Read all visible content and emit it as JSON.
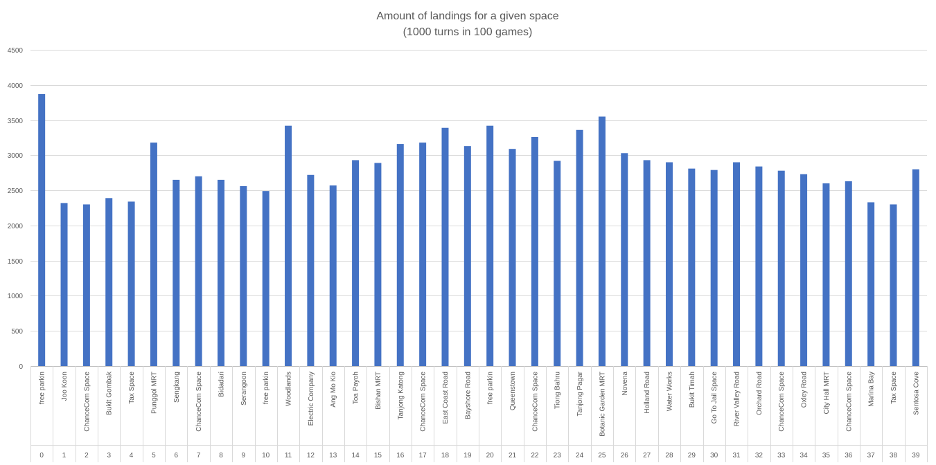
{
  "chart_data": {
    "type": "bar",
    "title": "Amount of landings for a given space",
    "subtitle": "(1000 turns in 100 games)",
    "xlabel": "",
    "ylabel": "",
    "ylim": [
      0,
      4500
    ],
    "yticks": [
      0,
      500,
      1000,
      1500,
      2000,
      2500,
      3000,
      3500,
      4000,
      4500
    ],
    "grid": true,
    "legend": "none",
    "bar_color": "#4472C4",
    "categories": [
      "free parkin",
      "Joo Koon",
      "ChanceCom Space",
      "Bukit Gombak",
      "Tax Space",
      "Punggol MRT",
      "Sengkang",
      "ChanceCom Space",
      "Bidadari",
      "Serangoon",
      "free parkin",
      "Woodlands",
      "Electric Company",
      "Ang Mo Kio",
      "Toa Payoh",
      "Bishan MRT",
      "Tanjong Katong",
      "ChanceCom Space",
      "East Coast Road",
      "Bayshore Road",
      "free parkin",
      "Queenstown",
      "ChanceCom Space",
      "Tiong Bahru",
      "Tanjong Pagar",
      "Botanic Garden MRT",
      "Novena",
      "Holland Road",
      "Water Works",
      "Bukit Timah",
      "Go To Jail Space",
      "River Valley Road",
      "Orchard Road",
      "ChanceCom Space",
      "Oxley Road",
      "City Hall MRT",
      "ChanceCom Space",
      "Marina Bay",
      "Tax Space",
      "Sentosa Cove"
    ],
    "indices": [
      "0",
      "1",
      "2",
      "3",
      "4",
      "5",
      "6",
      "7",
      "8",
      "9",
      "10",
      "11",
      "12",
      "13",
      "14",
      "15",
      "16",
      "17",
      "18",
      "19",
      "20",
      "21",
      "22",
      "23",
      "24",
      "25",
      "26",
      "27",
      "28",
      "29",
      "30",
      "31",
      "32",
      "33",
      "34",
      "35",
      "36",
      "37",
      "38",
      "39"
    ],
    "values": [
      3870,
      2320,
      2300,
      2390,
      2340,
      3180,
      2650,
      2700,
      2650,
      2560,
      2490,
      3420,
      2720,
      2570,
      2930,
      2890,
      3160,
      3180,
      3390,
      3130,
      3420,
      3090,
      3260,
      2920,
      3360,
      3550,
      3030,
      2930,
      2900,
      2810,
      2790,
      2900,
      2840,
      2780,
      2730,
      2600,
      2630,
      2330,
      2300,
      2800
    ]
  }
}
